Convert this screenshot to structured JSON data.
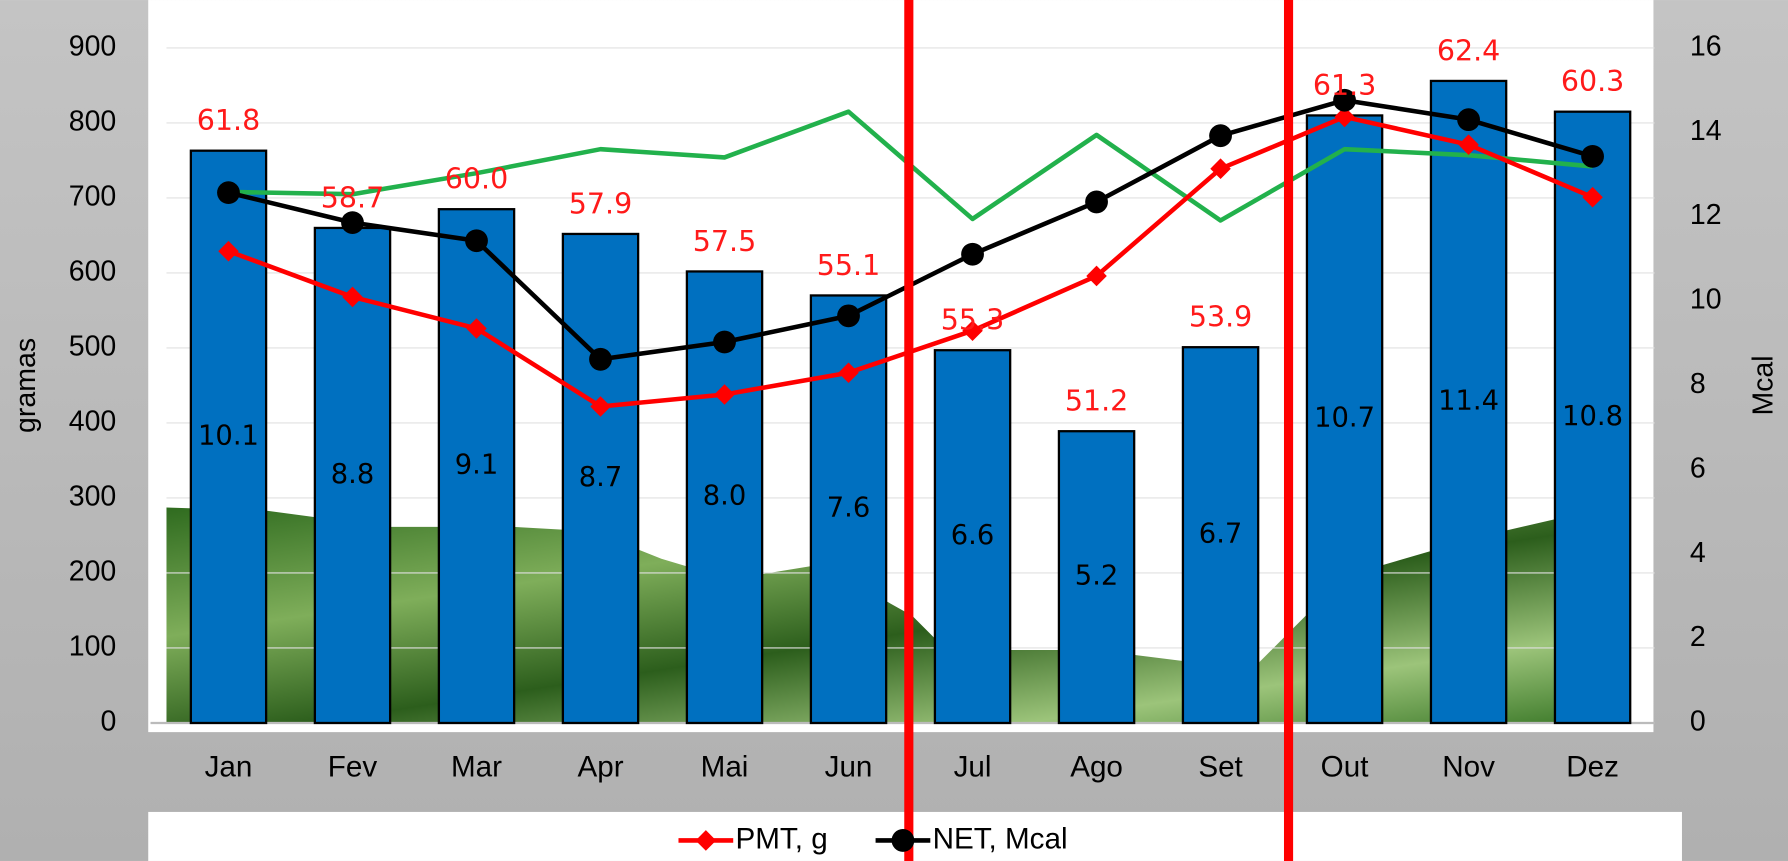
{
  "chart_data": {
    "type": "bar",
    "categories": [
      "Jan",
      "Fev",
      "Mar",
      "Apr",
      "Mai",
      "Jun",
      "Jul",
      "Ago",
      "Set",
      "Out",
      "Nov",
      "Dez"
    ],
    "ylabel": "gramas",
    "y2label": "Mcal",
    "ylim": [
      0,
      900
    ],
    "yticks": [
      0,
      100,
      200,
      300,
      400,
      500,
      600,
      700,
      800,
      900
    ],
    "y2lim": [
      0,
      16
    ],
    "y2ticks": [
      0,
      2,
      4,
      6,
      8,
      10,
      12,
      14,
      16
    ],
    "series": [
      {
        "mark": "bar",
        "color": "#0070c0",
        "values": [
          763,
          660,
          685,
          652,
          602,
          570,
          497,
          389,
          501,
          810,
          856,
          815
        ]
      },
      {
        "mark": "line",
        "color": "#22b14c",
        "values": [
          708,
          705,
          733,
          765,
          754,
          815,
          672,
          784,
          670,
          765,
          757,
          742
        ]
      },
      {
        "name": "PMT, g",
        "mark": "line",
        "marker": "diamond",
        "color": "#ff0000",
        "values": [
          629,
          568,
          526,
          422,
          438,
          467,
          523,
          596,
          739,
          808,
          771,
          701
        ]
      },
      {
        "name": "NET, Mcal",
        "mark": "line",
        "marker": "circle",
        "axis": "y2",
        "color": "#000000",
        "values": [
          12.57,
          11.86,
          11.43,
          8.62,
          9.03,
          9.65,
          11.11,
          12.35,
          13.92,
          14.76,
          14.3,
          13.43
        ]
      }
    ],
    "bar_top_labels": [
      "61.8",
      "58.7",
      "60.0",
      "57.9",
      "57.5",
      "55.1",
      "55.3",
      "51.2",
      "53.9",
      "61.3",
      "62.4",
      "60.3"
    ],
    "bar_inner_labels": [
      "10.1",
      "8.8",
      "9.1",
      "8.7",
      "8.0",
      "7.6",
      "6.6",
      "5.2",
      "6.7",
      "10.7",
      "11.4",
      "10.8"
    ]
  }
}
